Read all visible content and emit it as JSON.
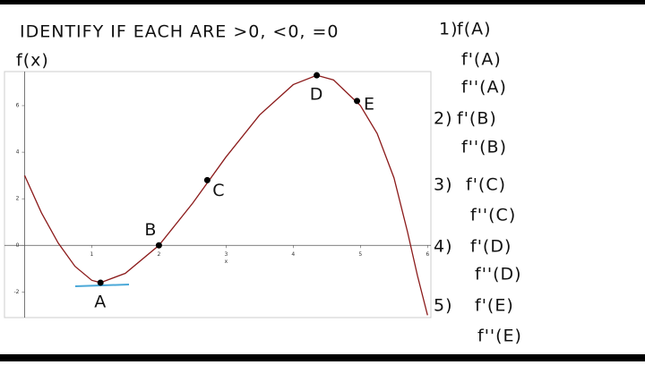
{
  "instruction": "IDENTIFY IF EACH ARE >0, <0, =0",
  "questions": [
    {
      "number": "1)",
      "items": [
        "f(A)",
        "f'(A)",
        "f''(A)"
      ]
    },
    {
      "number": "2)",
      "items": [
        "f'(B)",
        "f''(B)"
      ]
    },
    {
      "number": "3)",
      "items": [
        "f'(C)",
        "f''(C)"
      ]
    },
    {
      "number": "4)",
      "items": [
        "f'(D)",
        "f''(D)"
      ]
    },
    {
      "number": "5)",
      "items": [
        "f'(E)",
        "f''(E)"
      ]
    }
  ],
  "chart_data": {
    "type": "line",
    "title": "f(x)",
    "xlabel": "x",
    "x": [
      0,
      0.25,
      0.5,
      0.75,
      1,
      1.13,
      1.5,
      2,
      2.5,
      3,
      3.5,
      4,
      4.35,
      4.6,
      5,
      5.25,
      5.5,
      5.7,
      5.85,
      6
    ],
    "series": [
      {
        "color": "#8b1a1a",
        "values": [
          3,
          1.4,
          0.1,
          -0.9,
          -1.5,
          -1.6,
          -1.2,
          0,
          1.8,
          3.8,
          5.6,
          6.9,
          7.3,
          7.1,
          6.0,
          4.8,
          2.9,
          0.6,
          -1.3,
          -3.0
        ]
      }
    ],
    "points": {
      "labels": [
        "A",
        "B",
        "C",
        "D",
        "E"
      ],
      "x": [
        1.13,
        2,
        2.72,
        4.35,
        4.95
      ],
      "y": [
        -1.6,
        0,
        2.8,
        7.3,
        6.2
      ]
    },
    "xlim": [
      -0.3,
      6.05
    ],
    "ylim": [
      -3.1,
      7.46
    ],
    "xticks": [
      1,
      2,
      3,
      4,
      5,
      6
    ],
    "yticks": [
      -2,
      0,
      2,
      4,
      6
    ]
  }
}
